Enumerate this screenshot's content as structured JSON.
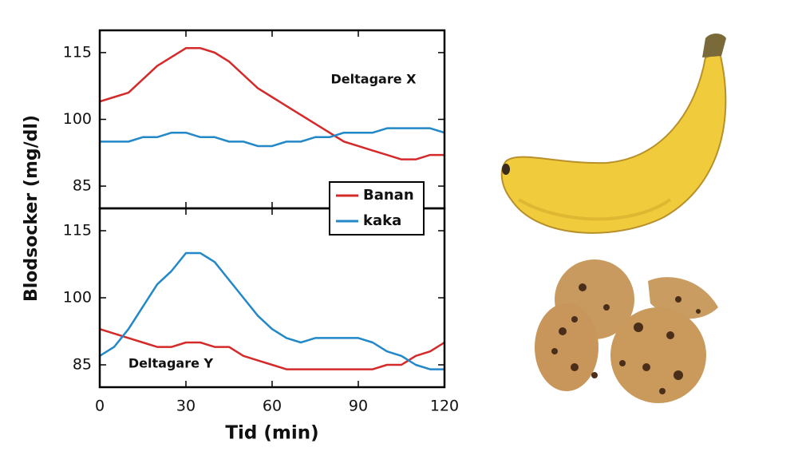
{
  "chart_data": [
    {
      "type": "line",
      "annotation": "Deltagare X",
      "ylabel": "Blodsocker (mg/dl)",
      "x": [
        0,
        5,
        10,
        15,
        20,
        25,
        30,
        35,
        40,
        45,
        50,
        55,
        60,
        65,
        70,
        75,
        80,
        85,
        90,
        95,
        100,
        105,
        110,
        115,
        120
      ],
      "xlim": [
        0,
        120
      ],
      "xticks": [
        0,
        30,
        60,
        90,
        120
      ],
      "ylim": [
        80,
        120
      ],
      "yticks": [
        85,
        100,
        115
      ],
      "series": [
        {
          "name": "Banan",
          "color": "#d42a2a",
          "values": [
            104,
            105,
            106,
            109,
            112,
            114,
            116,
            116,
            115,
            113,
            110,
            107,
            105,
            103,
            101,
            99,
            97,
            95,
            94,
            93,
            92,
            91,
            91,
            92,
            92
          ]
        },
        {
          "name": "kaka",
          "color": "#2288c8",
          "values": [
            95,
            95,
            95,
            96,
            96,
            97,
            97,
            96,
            96,
            95,
            95,
            94,
            94,
            95,
            95,
            96,
            96,
            97,
            97,
            97,
            98,
            98,
            98,
            98,
            97
          ]
        }
      ]
    },
    {
      "type": "line",
      "annotation": "Deltagare Y",
      "xlabel": "Tid (min)",
      "x": [
        0,
        5,
        10,
        15,
        20,
        25,
        30,
        35,
        40,
        45,
        50,
        55,
        60,
        65,
        70,
        75,
        80,
        85,
        90,
        95,
        100,
        105,
        110,
        115,
        120
      ],
      "xlim": [
        0,
        120
      ],
      "xticks": [
        0,
        30,
        60,
        90,
        120
      ],
      "ylim": [
        80,
        120
      ],
      "yticks": [
        85,
        100,
        115
      ],
      "series": [
        {
          "color": "#d42a2a",
          "values": [
            93,
            92,
            91,
            90,
            89,
            89,
            90,
            90,
            89,
            89,
            87,
            86,
            85,
            84,
            84,
            84,
            84,
            84,
            84,
            84,
            85,
            85,
            87,
            88,
            90
          ]
        },
        {
          "color": "#2288c8",
          "values": [
            87,
            89,
            93,
            98,
            103,
            106,
            110,
            110,
            108,
            104,
            100,
            96,
            93,
            91,
            90,
            91,
            91,
            91,
            91,
            90,
            88,
            87,
            85,
            84,
            84
          ]
        }
      ]
    }
  ]
}
